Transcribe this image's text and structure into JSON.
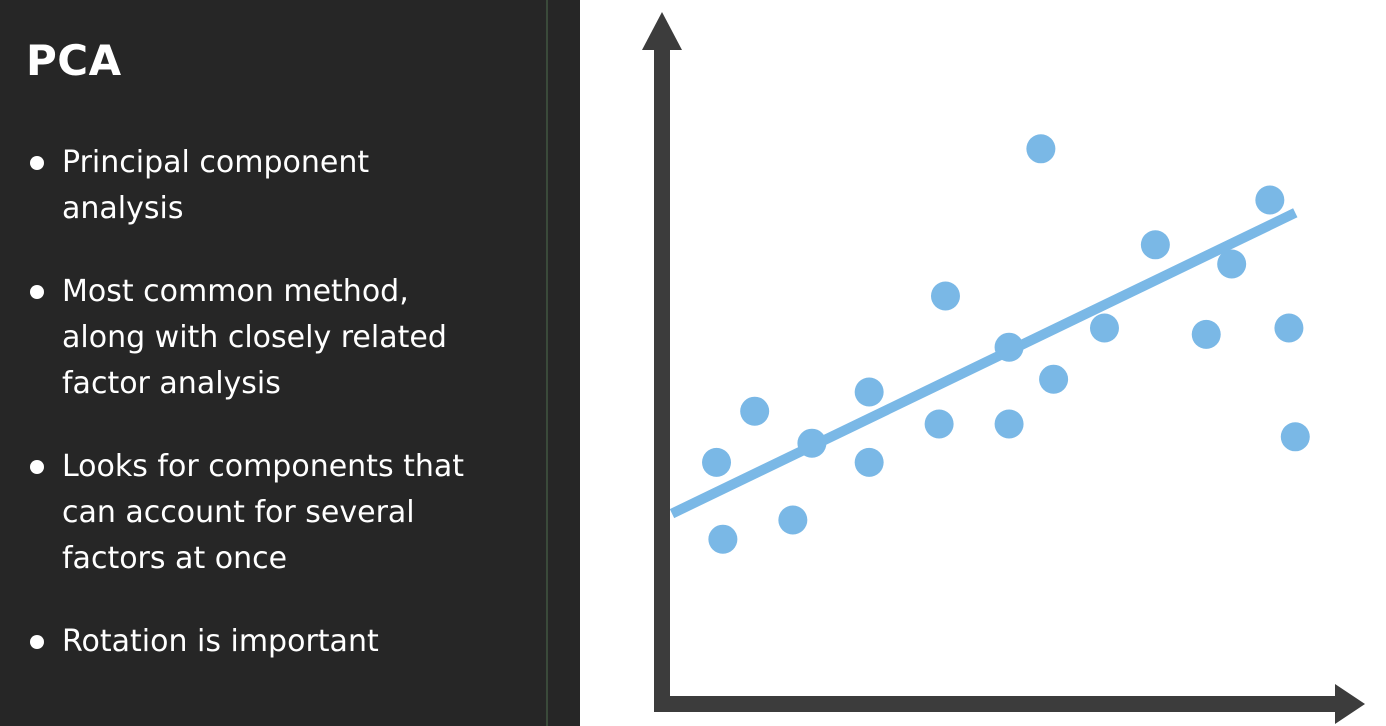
{
  "slide": {
    "title": "PCA",
    "bullets": [
      {
        "line1": "Principal component",
        "line2": "analysis",
        "line3": ""
      },
      {
        "line1": "Most common method,",
        "line2": "along with closely related",
        "line3": "factor analysis"
      },
      {
        "line1": "Looks for components that",
        "line2": "can account for several",
        "line3": "factors at once"
      },
      {
        "line1": "Rotation is important",
        "line2": "",
        "line3": ""
      }
    ]
  },
  "colors": {
    "panel_background": "#262626",
    "text": "#ffffff",
    "axis": "#3c3c3c",
    "points": "#7ab8e6",
    "trend_line": "#7ab8e6"
  },
  "chart_data": {
    "type": "scatter",
    "title": "",
    "xlabel": "",
    "ylabel": "",
    "xlim": [
      0,
      100
    ],
    "ylim": [
      0,
      100
    ],
    "grid": false,
    "points": [
      {
        "x": 7,
        "y": 34
      },
      {
        "x": 8,
        "y": 22
      },
      {
        "x": 13,
        "y": 42
      },
      {
        "x": 19,
        "y": 25
      },
      {
        "x": 22,
        "y": 37
      },
      {
        "x": 31,
        "y": 34
      },
      {
        "x": 31,
        "y": 45
      },
      {
        "x": 42,
        "y": 40
      },
      {
        "x": 43,
        "y": 60
      },
      {
        "x": 53,
        "y": 40
      },
      {
        "x": 53,
        "y": 52
      },
      {
        "x": 58,
        "y": 83
      },
      {
        "x": 60,
        "y": 47
      },
      {
        "x": 68,
        "y": 55
      },
      {
        "x": 76,
        "y": 68
      },
      {
        "x": 84,
        "y": 54
      },
      {
        "x": 88,
        "y": 65
      },
      {
        "x": 94,
        "y": 75
      },
      {
        "x": 97,
        "y": 55
      },
      {
        "x": 98,
        "y": 38
      }
    ],
    "trend_line": {
      "x1": 0,
      "y1": 26,
      "x2": 98,
      "y2": 73
    }
  }
}
